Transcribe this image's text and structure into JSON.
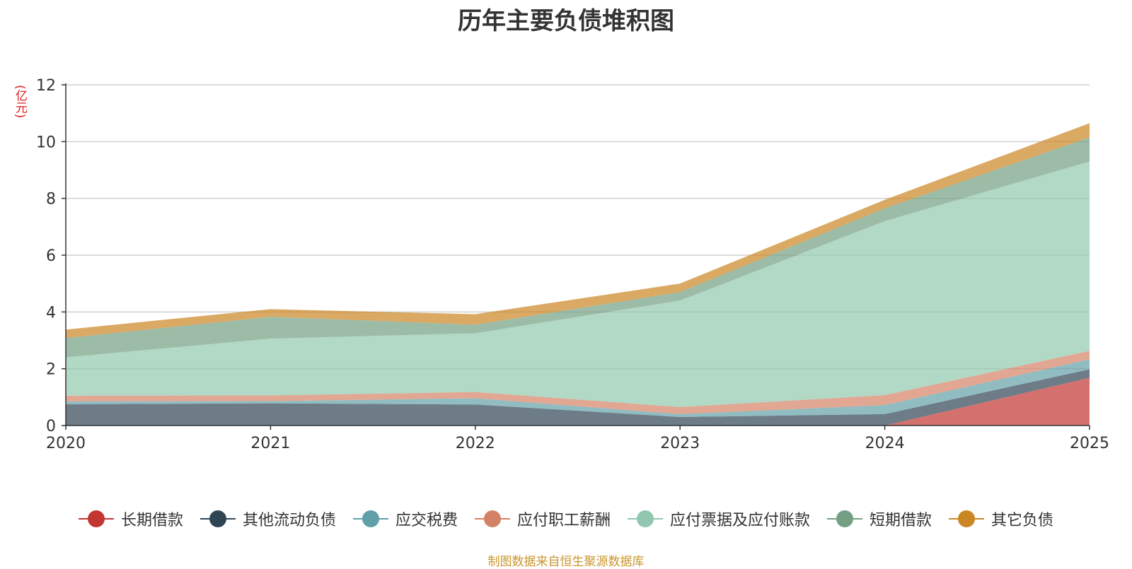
{
  "chart_data": {
    "type": "area",
    "stacked": true,
    "title": "历年主要负债堆积图",
    "ylabel": "(亿元)",
    "xlabel": "",
    "ylim": [
      0,
      12
    ],
    "yticks": [
      0,
      2,
      4,
      6,
      8,
      10,
      12
    ],
    "categories": [
      "2020",
      "2021",
      "2022",
      "2023",
      "2024",
      "2025"
    ],
    "grid": true,
    "legend_position": "bottom",
    "series": [
      {
        "name": "长期借款",
        "color": "#c23531",
        "values": [
          0,
          0,
          0,
          0,
          0,
          1.68
        ]
      },
      {
        "name": "其他流动负债",
        "color": "#2f4554",
        "values": [
          0.75,
          0.78,
          0.74,
          0.3,
          0.4,
          0.3
        ]
      },
      {
        "name": "应交税费",
        "color": "#61a0a8",
        "values": [
          0.1,
          0.08,
          0.22,
          0.1,
          0.32,
          0.35
        ]
      },
      {
        "name": "应付职工薪酬",
        "color": "#d48265",
        "values": [
          0.2,
          0.2,
          0.22,
          0.25,
          0.35,
          0.3
        ]
      },
      {
        "name": "应付票据及应付账款",
        "color": "#91c7ae",
        "values": [
          1.35,
          2.0,
          2.07,
          3.75,
          6.13,
          6.67
        ]
      },
      {
        "name": "短期借款",
        "color": "#749f83",
        "values": [
          0.68,
          0.77,
          0.3,
          0.3,
          0.45,
          0.85
        ]
      },
      {
        "name": "其它负债",
        "color": "#ca8622",
        "values": [
          0.3,
          0.27,
          0.37,
          0.3,
          0.3,
          0.5
        ]
      }
    ]
  },
  "source_note": "制图数据来自恒生聚源数据库"
}
